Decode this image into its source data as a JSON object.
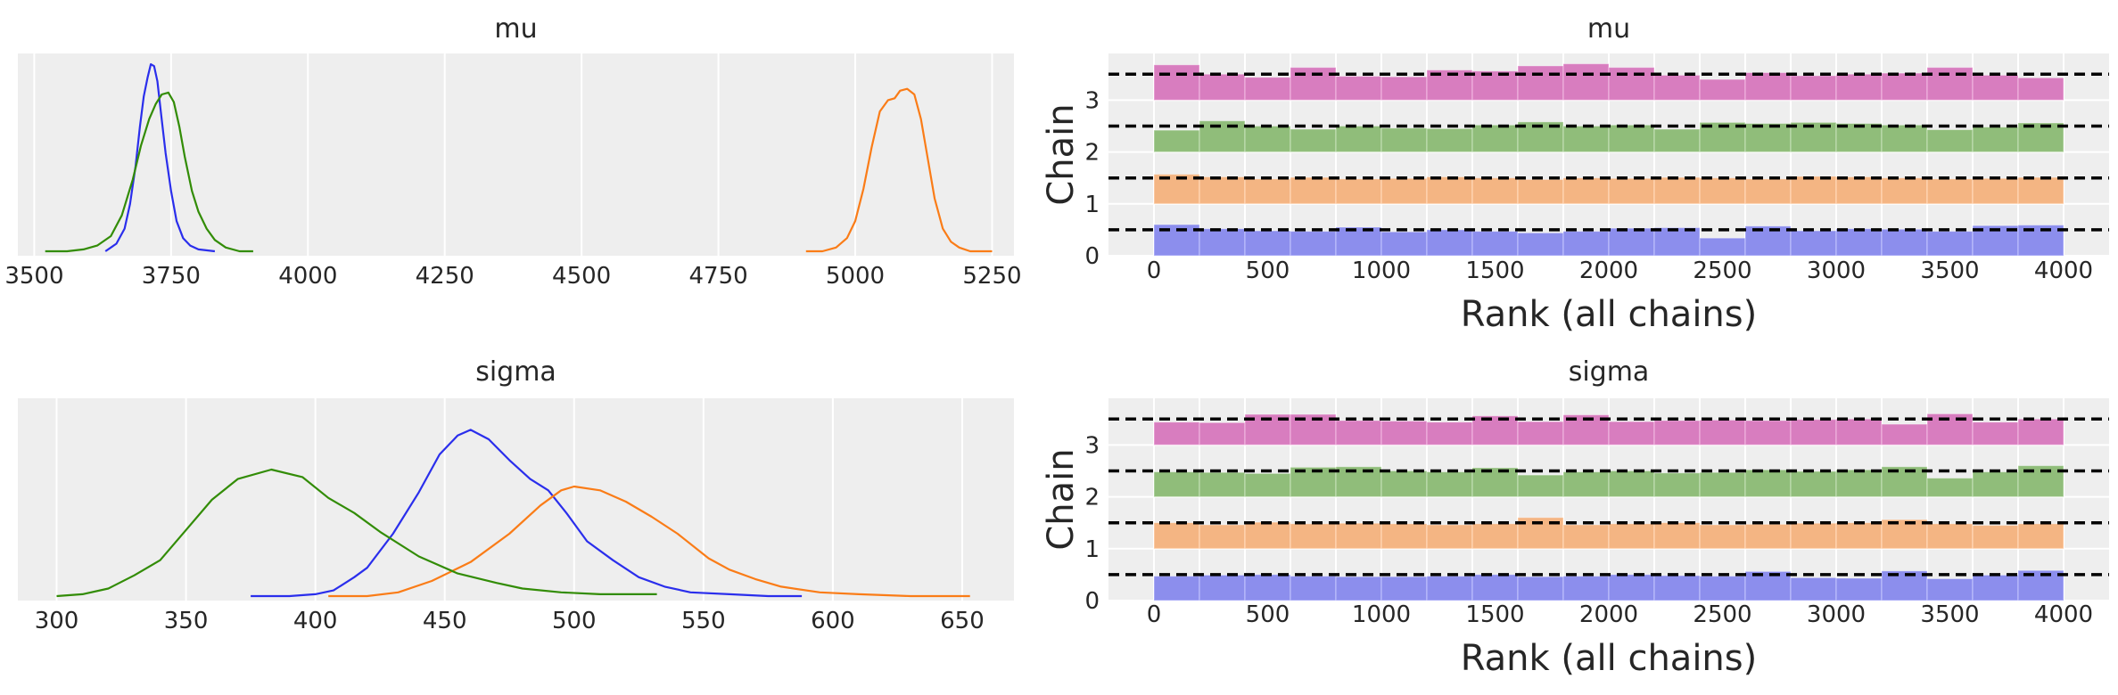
{
  "colors": {
    "chain0": "#2a2eec",
    "chain1": "#fa7c17",
    "chain2": "#328c06",
    "chain3": "#c10c90",
    "panel_bg": "#eeeeee",
    "grid": "#ffffff"
  },
  "chart_data": [
    {
      "type": "line",
      "title": "mu",
      "xlim": [
        3470,
        5290
      ],
      "xticks": [
        3500,
        3750,
        4000,
        4250,
        4500,
        4750,
        5000,
        5250
      ],
      "xtick_labels": [
        "3500",
        "3750",
        "4000",
        "4250",
        "4500",
        "4750",
        "5000",
        "5250"
      ],
      "grid": true,
      "series": [
        {
          "chain": 0,
          "points": [
            [
              3630,
              0.0
            ],
            [
              3650,
              0.04
            ],
            [
              3665,
              0.12
            ],
            [
              3675,
              0.25
            ],
            [
              3685,
              0.45
            ],
            [
              3693,
              0.66
            ],
            [
              3700,
              0.82
            ],
            [
              3707,
              0.92
            ],
            [
              3713,
              0.99
            ],
            [
              3719,
              0.98
            ],
            [
              3725,
              0.9
            ],
            [
              3732,
              0.72
            ],
            [
              3740,
              0.52
            ],
            [
              3750,
              0.32
            ],
            [
              3760,
              0.16
            ],
            [
              3772,
              0.07
            ],
            [
              3785,
              0.03
            ],
            [
              3800,
              0.01
            ],
            [
              3830,
              0.0
            ]
          ]
        },
        {
          "chain": 1,
          "points": [
            [
              4910,
              0.0
            ],
            [
              4940,
              0.0
            ],
            [
              4965,
              0.02
            ],
            [
              4985,
              0.07
            ],
            [
              5000,
              0.16
            ],
            [
              5015,
              0.33
            ],
            [
              5030,
              0.55
            ],
            [
              5045,
              0.74
            ],
            [
              5060,
              0.8
            ],
            [
              5072,
              0.81
            ],
            [
              5082,
              0.85
            ],
            [
              5095,
              0.86
            ],
            [
              5108,
              0.83
            ],
            [
              5120,
              0.7
            ],
            [
              5132,
              0.5
            ],
            [
              5145,
              0.28
            ],
            [
              5160,
              0.12
            ],
            [
              5175,
              0.05
            ],
            [
              5190,
              0.02
            ],
            [
              5210,
              0.0
            ],
            [
              5250,
              0.0
            ]
          ]
        },
        {
          "chain": 2,
          "points": [
            [
              3520,
              0.0
            ],
            [
              3560,
              0.0
            ],
            [
              3590,
              0.01
            ],
            [
              3615,
              0.03
            ],
            [
              3640,
              0.08
            ],
            [
              3660,
              0.19
            ],
            [
              3680,
              0.38
            ],
            [
              3695,
              0.56
            ],
            [
              3710,
              0.7
            ],
            [
              3722,
              0.78
            ],
            [
              3733,
              0.83
            ],
            [
              3745,
              0.84
            ],
            [
              3755,
              0.79
            ],
            [
              3765,
              0.66
            ],
            [
              3775,
              0.5
            ],
            [
              3788,
              0.32
            ],
            [
              3800,
              0.21
            ],
            [
              3815,
              0.12
            ],
            [
              3830,
              0.06
            ],
            [
              3850,
              0.02
            ],
            [
              3875,
              0.0
            ],
            [
              3900,
              0.0
            ]
          ]
        }
      ]
    },
    {
      "type": "line",
      "title": "sigma",
      "xlim": [
        285,
        670
      ],
      "xticks": [
        300,
        350,
        400,
        450,
        500,
        550,
        600,
        650
      ],
      "xtick_labels": [
        "300",
        "350",
        "400",
        "450",
        "500",
        "550",
        "600",
        "650"
      ],
      "grid": true,
      "series": [
        {
          "chain": 0,
          "points": [
            [
              375,
              0.0
            ],
            [
              390,
              0.0
            ],
            [
              400,
              0.01
            ],
            [
              407,
              0.03
            ],
            [
              415,
              0.1
            ],
            [
              420,
              0.15
            ],
            [
              430,
              0.33
            ],
            [
              440,
              0.55
            ],
            [
              448,
              0.75
            ],
            [
              455,
              0.85
            ],
            [
              460,
              0.88
            ],
            [
              467,
              0.83
            ],
            [
              475,
              0.72
            ],
            [
              483,
              0.62
            ],
            [
              490,
              0.56
            ],
            [
              497,
              0.44
            ],
            [
              505,
              0.29
            ],
            [
              515,
              0.19
            ],
            [
              525,
              0.1
            ],
            [
              535,
              0.05
            ],
            [
              545,
              0.02
            ],
            [
              560,
              0.01
            ],
            [
              575,
              0.0
            ],
            [
              588,
              0.0
            ]
          ]
        },
        {
          "chain": 1,
          "points": [
            [
              405,
              0.0
            ],
            [
              420,
              0.0
            ],
            [
              432,
              0.02
            ],
            [
              445,
              0.08
            ],
            [
              460,
              0.18
            ],
            [
              475,
              0.33
            ],
            [
              487,
              0.48
            ],
            [
              495,
              0.56
            ],
            [
              500,
              0.58
            ],
            [
              510,
              0.56
            ],
            [
              520,
              0.5
            ],
            [
              530,
              0.42
            ],
            [
              540,
              0.33
            ],
            [
              552,
              0.2
            ],
            [
              560,
              0.14
            ],
            [
              570,
              0.09
            ],
            [
              580,
              0.05
            ],
            [
              595,
              0.02
            ],
            [
              610,
              0.01
            ],
            [
              630,
              0.0
            ],
            [
              653,
              0.0
            ]
          ]
        },
        {
          "chain": 2,
          "points": [
            [
              300,
              0.0
            ],
            [
              310,
              0.01
            ],
            [
              320,
              0.04
            ],
            [
              330,
              0.11
            ],
            [
              340,
              0.19
            ],
            [
              350,
              0.35
            ],
            [
              360,
              0.51
            ],
            [
              370,
              0.62
            ],
            [
              383,
              0.67
            ],
            [
              395,
              0.63
            ],
            [
              405,
              0.52
            ],
            [
              415,
              0.44
            ],
            [
              425,
              0.34
            ],
            [
              440,
              0.21
            ],
            [
              455,
              0.12
            ],
            [
              470,
              0.07
            ],
            [
              480,
              0.04
            ],
            [
              495,
              0.02
            ],
            [
              510,
              0.01
            ],
            [
              520,
              0.01
            ],
            [
              532,
              0.01
            ]
          ]
        }
      ]
    },
    {
      "type": "bar",
      "title": "mu",
      "xlabel": "Rank (all chains)",
      "ylabel": "Chain",
      "xlim": [
        -200,
        4200
      ],
      "xticks": [
        0,
        500,
        1000,
        1500,
        2000,
        2500,
        3000,
        3500,
        4000
      ],
      "xtick_labels": [
        "0",
        "500",
        "1000",
        "1500",
        "2000",
        "2500",
        "3000",
        "3500",
        "4000"
      ],
      "yticks": [
        0,
        1,
        2,
        3
      ],
      "ytick_labels": [
        "0",
        "1",
        "2",
        "3"
      ],
      "ylim": [
        0,
        3.9
      ],
      "bin_edges": [
        0,
        200,
        400,
        600,
        800,
        1000,
        1200,
        1400,
        1600,
        1800,
        2000,
        2200,
        2400,
        2600,
        2800,
        3000,
        3200,
        3400,
        3600,
        3800,
        4000
      ],
      "reference_offset": 0.5,
      "series": [
        {
          "chain": 0,
          "values": [
            0.6,
            0.52,
            0.48,
            0.47,
            0.55,
            0.46,
            0.5,
            0.47,
            0.44,
            0.47,
            0.53,
            0.54,
            0.34,
            0.57,
            0.48,
            0.52,
            0.51,
            0.47,
            0.58,
            0.59
          ]
        },
        {
          "chain": 1,
          "values": [
            0.57,
            0.52,
            0.48,
            0.51,
            0.48,
            0.49,
            0.52,
            0.5,
            0.47,
            0.5,
            0.49,
            0.51,
            0.5,
            0.48,
            0.53,
            0.52,
            0.5,
            0.48,
            0.49,
            0.51
          ]
        },
        {
          "chain": 2,
          "values": [
            0.42,
            0.6,
            0.5,
            0.44,
            0.5,
            0.46,
            0.45,
            0.52,
            0.58,
            0.5,
            0.52,
            0.44,
            0.57,
            0.55,
            0.57,
            0.55,
            0.52,
            0.43,
            0.48,
            0.56
          ]
        },
        {
          "chain": 3,
          "values": [
            0.68,
            0.5,
            0.44,
            0.63,
            0.46,
            0.45,
            0.58,
            0.56,
            0.66,
            0.7,
            0.63,
            0.48,
            0.4,
            0.53,
            0.47,
            0.5,
            0.52,
            0.63,
            0.48,
            0.43
          ]
        }
      ]
    },
    {
      "type": "bar",
      "title": "sigma",
      "xlabel": "Rank (all chains)",
      "ylabel": "Chain",
      "xlim": [
        -200,
        4200
      ],
      "xticks": [
        0,
        500,
        1000,
        1500,
        2000,
        2500,
        3000,
        3500,
        4000
      ],
      "xtick_labels": [
        "0",
        "500",
        "1000",
        "1500",
        "2000",
        "2500",
        "3000",
        "3500",
        "4000"
      ],
      "yticks": [
        0,
        1,
        2,
        3
      ],
      "ytick_labels": [
        "0",
        "1",
        "2",
        "3"
      ],
      "ylim": [
        0,
        3.9
      ],
      "bin_edges": [
        0,
        200,
        400,
        600,
        800,
        1000,
        1200,
        1400,
        1600,
        1800,
        2000,
        2200,
        2400,
        2600,
        2800,
        3000,
        3200,
        3400,
        3600,
        3800,
        4000
      ],
      "reference_offset": 0.5,
      "series": [
        {
          "chain": 0,
          "values": [
            0.47,
            0.49,
            0.5,
            0.47,
            0.46,
            0.46,
            0.47,
            0.5,
            0.46,
            0.47,
            0.5,
            0.48,
            0.47,
            0.56,
            0.44,
            0.43,
            0.57,
            0.42,
            0.49,
            0.58
          ]
        },
        {
          "chain": 1,
          "values": [
            0.5,
            0.46,
            0.51,
            0.48,
            0.49,
            0.48,
            0.46,
            0.48,
            0.6,
            0.46,
            0.48,
            0.5,
            0.46,
            0.47,
            0.49,
            0.5,
            0.56,
            0.48,
            0.45,
            0.48
          ]
        },
        {
          "chain": 2,
          "values": [
            0.48,
            0.47,
            0.45,
            0.57,
            0.58,
            0.5,
            0.48,
            0.56,
            0.42,
            0.48,
            0.5,
            0.46,
            0.47,
            0.52,
            0.49,
            0.52,
            0.58,
            0.36,
            0.48,
            0.6
          ]
        },
        {
          "chain": 3,
          "values": [
            0.44,
            0.43,
            0.59,
            0.59,
            0.47,
            0.46,
            0.44,
            0.56,
            0.45,
            0.58,
            0.45,
            0.47,
            0.48,
            0.47,
            0.49,
            0.5,
            0.4,
            0.6,
            0.44,
            0.5
          ]
        }
      ]
    }
  ]
}
